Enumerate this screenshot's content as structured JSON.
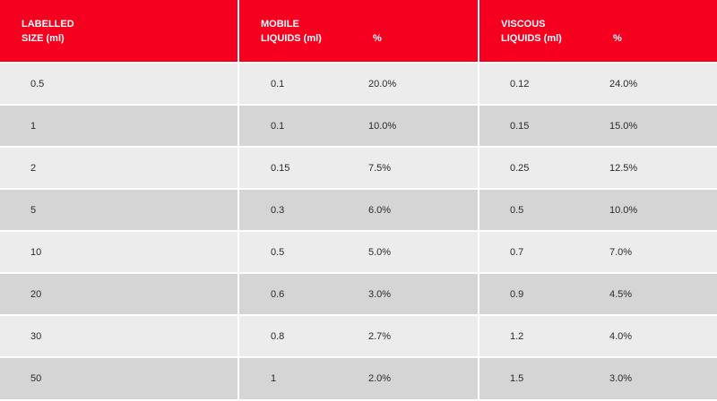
{
  "header": {
    "col1": [
      "LABELLED",
      "SIZE (ml)"
    ],
    "col2": [
      "MOBILE",
      "LIQUIDS (ml)"
    ],
    "col2_pct": "%",
    "col3": [
      "VISCOUS",
      "LIQUIDS (ml)"
    ],
    "col3_pct": "%"
  },
  "rows": [
    {
      "size": "0.5",
      "mobile": "0.1",
      "mobile_pct": "20.0%",
      "viscous": "0.12",
      "viscous_pct": "24.0%"
    },
    {
      "size": "1",
      "mobile": "0.1",
      "mobile_pct": "10.0%",
      "viscous": "0.15",
      "viscous_pct": "15.0%"
    },
    {
      "size": "2",
      "mobile": "0.15",
      "mobile_pct": "7.5%",
      "viscous": "0.25",
      "viscous_pct": "12.5%"
    },
    {
      "size": "5",
      "mobile": "0.3",
      "mobile_pct": "6.0%",
      "viscous": "0.5",
      "viscous_pct": "10.0%"
    },
    {
      "size": "10",
      "mobile": "0.5",
      "mobile_pct": "5.0%",
      "viscous": "0.7",
      "viscous_pct": "7.0%"
    },
    {
      "size": "20",
      "mobile": "0.6",
      "mobile_pct": "3.0%",
      "viscous": "0.9",
      "viscous_pct": "4.5%"
    },
    {
      "size": "30",
      "mobile": "0.8",
      "mobile_pct": "2.7%",
      "viscous": "1.2",
      "viscous_pct": "4.0%"
    },
    {
      "size": "50",
      "mobile": "1",
      "mobile_pct": "2.0%",
      "viscous": "1.5",
      "viscous_pct": "3.0%"
    }
  ],
  "colors": {
    "header_bg": "#f5001e",
    "row_light": "#ececec",
    "row_dark": "#d5d5d5"
  }
}
